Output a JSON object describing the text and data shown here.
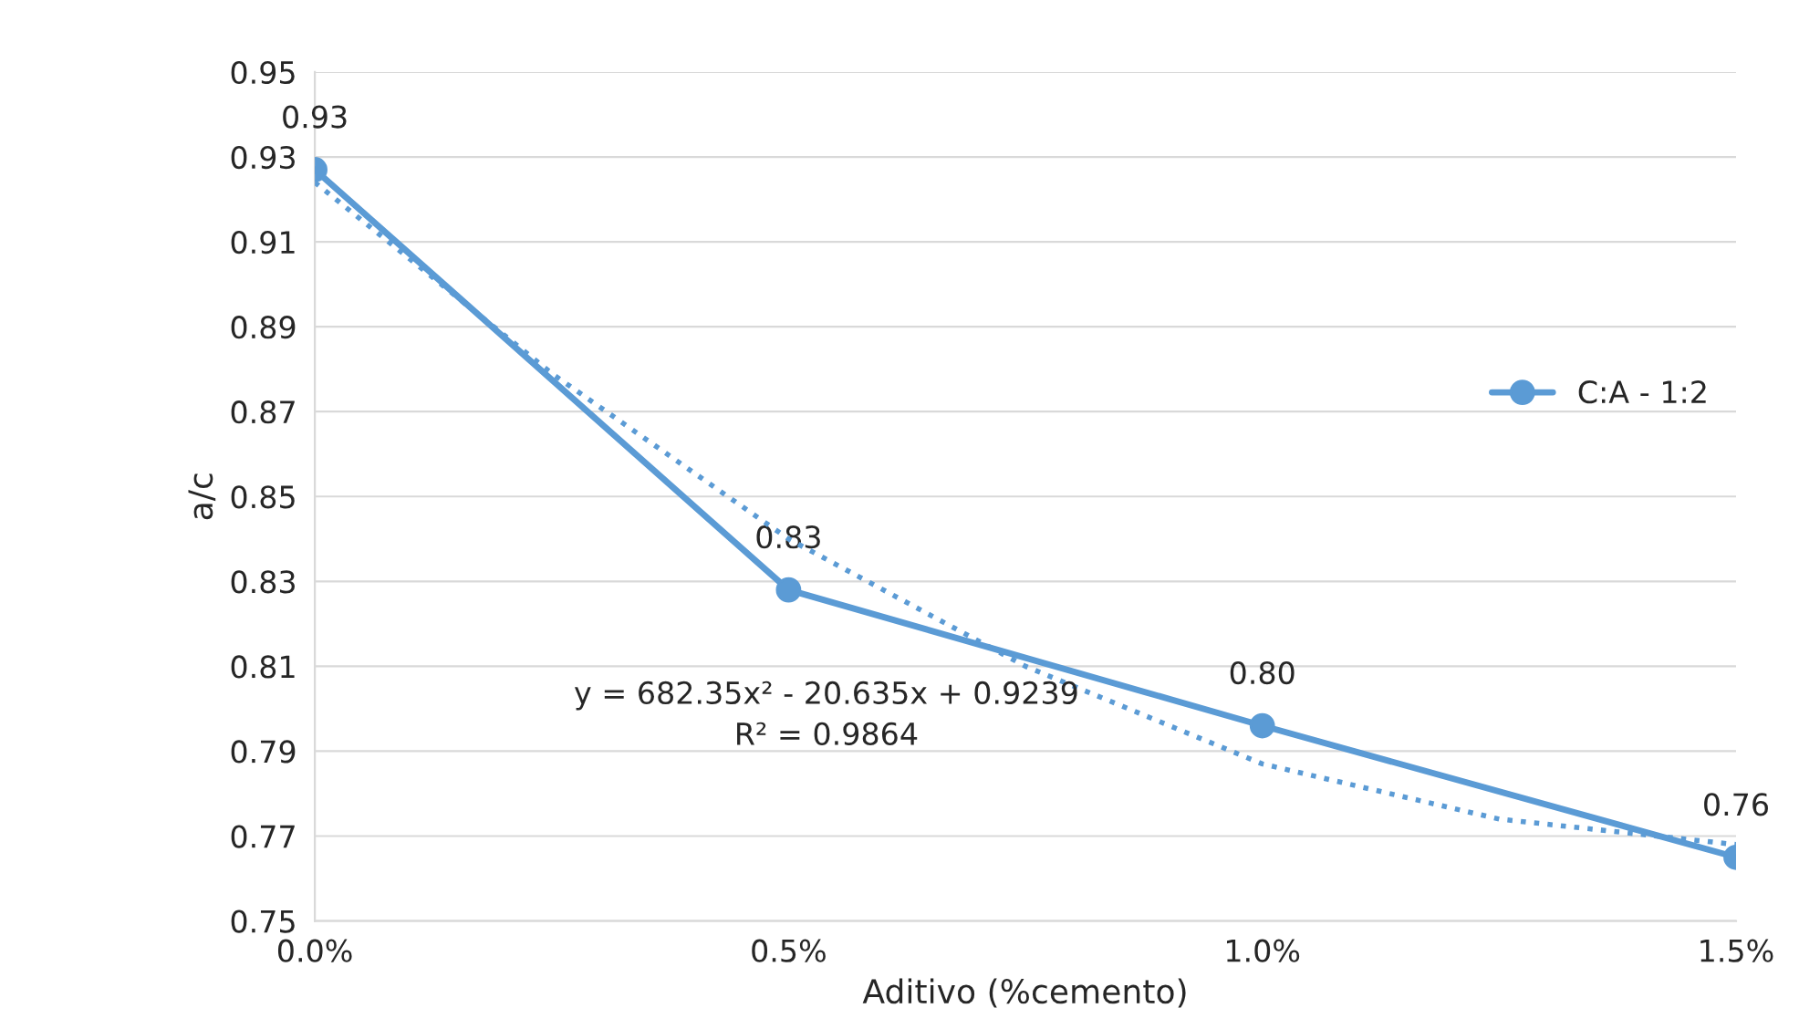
{
  "chart_data": {
    "type": "line",
    "xlabel": "Aditivo (%cemento)",
    "ylabel": "a/c",
    "x": [
      0,
      0.005,
      0.01,
      0.015
    ],
    "series": [
      {
        "name": "C:A - 1:2",
        "color": "#5b9bd5",
        "values": [
          0.927,
          0.828,
          0.796,
          0.765
        ],
        "value_labels": [
          "0.93",
          "0.83",
          "0.80",
          "0.76"
        ],
        "marker": "circle",
        "line_style": "solid"
      },
      {
        "type": "line",
        "color": "#5b9bd5",
        "x": [
          0,
          0.0025,
          0.005,
          0.0075,
          0.01,
          0.0125,
          0.015
        ],
        "values": [
          0.924,
          0.879,
          0.84,
          0.81,
          0.787,
          0.774,
          0.768
        ],
        "marker": "none",
        "line_style": "dotted"
      }
    ],
    "xlim": [
      0,
      0.015
    ],
    "xticks": [
      {
        "value": 0,
        "label": "0.0%"
      },
      {
        "value": 0.005,
        "label": "0.5%"
      },
      {
        "value": 0.01,
        "label": "1.0%"
      },
      {
        "value": 0.015,
        "label": "1.5%"
      }
    ],
    "ylim": [
      0.75,
      0.95
    ],
    "yticks": [
      0.75,
      0.77,
      0.79,
      0.81,
      0.83,
      0.85,
      0.87,
      0.89,
      0.91,
      0.93,
      0.95
    ],
    "grid": "y",
    "legend": "right",
    "annotations": [
      "y = 682.35x² - 20.635x + 0.9239\nR² = 0.9864"
    ]
  }
}
